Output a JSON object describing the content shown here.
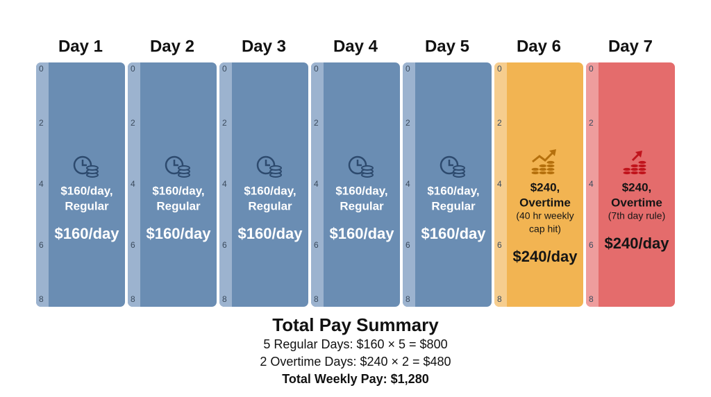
{
  "days": [
    {
      "title": "Day 1",
      "lines": [
        "$160/day,",
        "Regular"
      ],
      "amount": "$160/day",
      "color": "#6a8db3",
      "strip": "#9cb3cf",
      "ink": "#ffffff",
      "icon": "#2d4a6e"
    },
    {
      "title": "Day 2",
      "lines": [
        "$160/day,",
        "Regular"
      ],
      "amount": "$160/day",
      "color": "#6a8db3",
      "strip": "#9cb3cf",
      "ink": "#ffffff",
      "icon": "#2d4a6e"
    },
    {
      "title": "Day 3",
      "lines": [
        "$160/day,",
        "Regular"
      ],
      "amount": "$160/day",
      "color": "#6a8db3",
      "strip": "#9cb3cf",
      "ink": "#ffffff",
      "icon": "#2d4a6e"
    },
    {
      "title": "Day 4",
      "lines": [
        "$160/day,",
        "Regular"
      ],
      "amount": "$160/day",
      "color": "#6a8db3",
      "strip": "#9cb3cf",
      "ink": "#ffffff",
      "icon": "#2d4a6e"
    },
    {
      "title": "Day 5",
      "lines": [
        "$160/day,",
        "Regular"
      ],
      "amount": "$160/day",
      "color": "#6a8db3",
      "strip": "#9cb3cf",
      "ink": "#ffffff",
      "icon": "#2d4a6e"
    },
    {
      "title": "Day 6",
      "lines": [
        "$240,",
        "Overtime",
        "(40 hr weekly",
        "cap hit)"
      ],
      "amount": "$240/day",
      "color": "#f2b452",
      "strip": "#f6cd8e",
      "ink": "#151515",
      "icon": "#b5700d"
    },
    {
      "title": "Day 7",
      "lines": [
        "$240,",
        "Overtime",
        "(7th day rule)"
      ],
      "amount": "$240/day",
      "color": "#e46c6c",
      "strip": "#ee9d9d",
      "ink": "#151515",
      "icon": "#c0141c"
    }
  ],
  "ruler": [
    "0",
    "2",
    "4",
    "6",
    "8"
  ],
  "summary": {
    "title": "Total Pay Summary",
    "lines": [
      "5 Regular Days: $160 × 5 = $800",
      "2 Overtime Days: $240 × 2 = $480",
      "Total Weekly Pay: $1,280"
    ]
  }
}
